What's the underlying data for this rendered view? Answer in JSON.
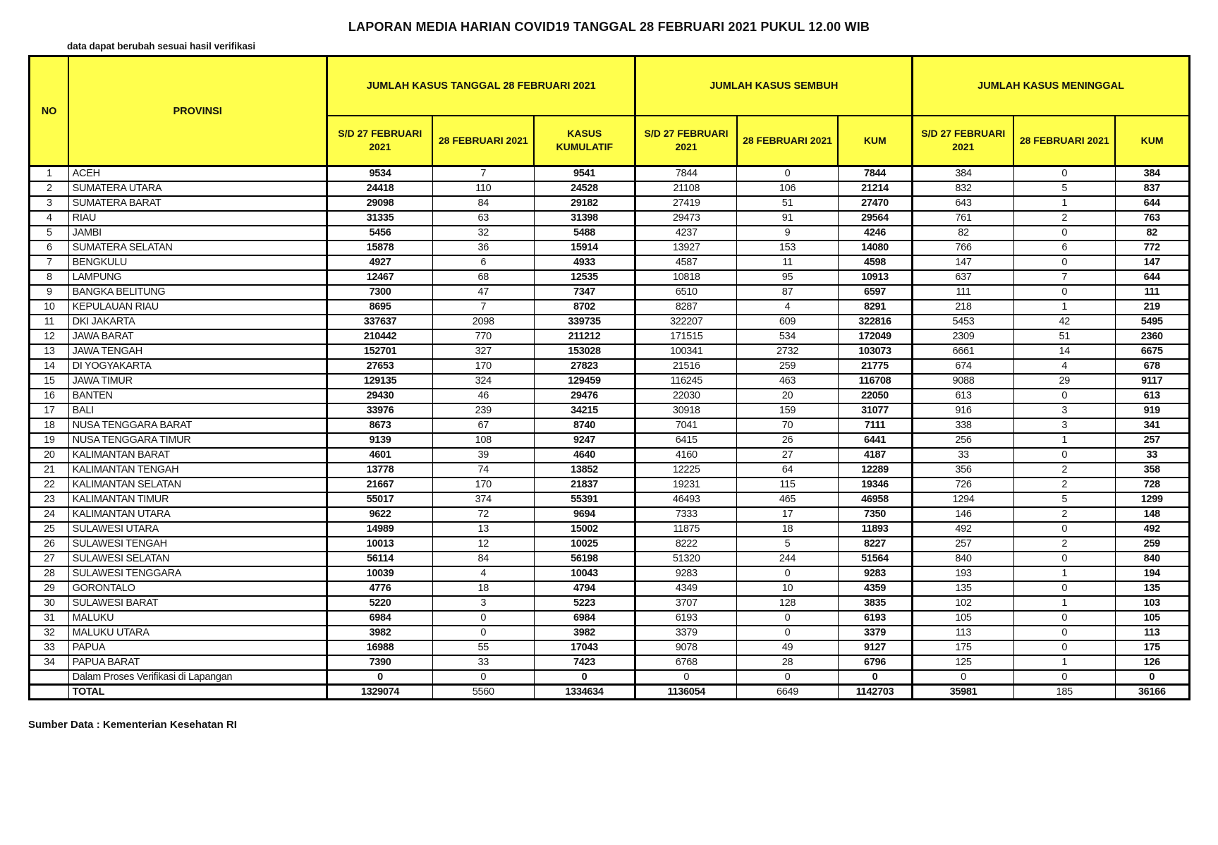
{
  "page": {
    "title": "LAPORAN MEDIA HARIAN COVID19 TANGGAL 28 FEBRUARI 2021 PUKUL 12.00 WIB",
    "note": "data dapat berubah sesuai hasil verifikasi",
    "source": "Sumber Data : Kementerian Kesehatan RI"
  },
  "colors": {
    "header_bg": "#ffff4d",
    "border": "#000000"
  },
  "table": {
    "groups": [
      "JUMLAH KASUS TANGGAL 28 FEBRUARI 2021",
      "JUMLAH KASUS SEMBUH",
      "JUMLAH KASUS MENINGGAL"
    ],
    "headers": {
      "no": "NO",
      "provinsi": "PROVINSI",
      "sd27": "S/D 27 FEBRUARI 2021",
      "feb28": "28 FEBRUARI 2021",
      "kasus_kumulatif": "KASUS KUMULATIF",
      "kum": "KUM"
    },
    "column_keys": [
      "sd27_kasus",
      "feb28_kasus",
      "kasus_kumulatif",
      "sd27_sembuh",
      "feb28_sembuh",
      "kum_sembuh",
      "sd27_meninggal",
      "feb28_meninggal",
      "kum_meninggal"
    ],
    "rows": [
      {
        "no": "1",
        "provinsi": "ACEH",
        "values": [
          9534,
          7,
          9541,
          7844,
          0,
          7844,
          384,
          0,
          384
        ]
      },
      {
        "no": "2",
        "provinsi": "SUMATERA UTARA",
        "values": [
          24418,
          110,
          24528,
          21108,
          106,
          21214,
          832,
          5,
          837
        ]
      },
      {
        "no": "3",
        "provinsi": "SUMATERA BARAT",
        "values": [
          29098,
          84,
          29182,
          27419,
          51,
          27470,
          643,
          1,
          644
        ]
      },
      {
        "no": "4",
        "provinsi": "RIAU",
        "values": [
          31335,
          63,
          31398,
          29473,
          91,
          29564,
          761,
          2,
          763
        ]
      },
      {
        "no": "5",
        "provinsi": "JAMBI",
        "values": [
          5456,
          32,
          5488,
          4237,
          9,
          4246,
          82,
          0,
          82
        ]
      },
      {
        "no": "6",
        "provinsi": "SUMATERA SELATAN",
        "values": [
          15878,
          36,
          15914,
          13927,
          153,
          14080,
          766,
          6,
          772
        ]
      },
      {
        "no": "7",
        "provinsi": "BENGKULU",
        "values": [
          4927,
          6,
          4933,
          4587,
          11,
          4598,
          147,
          0,
          147
        ]
      },
      {
        "no": "8",
        "provinsi": "LAMPUNG",
        "values": [
          12467,
          68,
          12535,
          10818,
          95,
          10913,
          637,
          7,
          644
        ]
      },
      {
        "no": "9",
        "provinsi": "BANGKA BELITUNG",
        "values": [
          7300,
          47,
          7347,
          6510,
          87,
          6597,
          111,
          0,
          111
        ]
      },
      {
        "no": "10",
        "provinsi": "KEPULAUAN RIAU",
        "values": [
          8695,
          7,
          8702,
          8287,
          4,
          8291,
          218,
          1,
          219
        ]
      },
      {
        "no": "11",
        "provinsi": "DKI JAKARTA",
        "values": [
          337637,
          2098,
          339735,
          322207,
          609,
          322816,
          5453,
          42,
          5495
        ]
      },
      {
        "no": "12",
        "provinsi": "JAWA BARAT",
        "values": [
          210442,
          770,
          211212,
          171515,
          534,
          172049,
          2309,
          51,
          2360
        ]
      },
      {
        "no": "13",
        "provinsi": "JAWA TENGAH",
        "values": [
          152701,
          327,
          153028,
          100341,
          2732,
          103073,
          6661,
          14,
          6675
        ]
      },
      {
        "no": "14",
        "provinsi": "DI YOGYAKARTA",
        "values": [
          27653,
          170,
          27823,
          21516,
          259,
          21775,
          674,
          4,
          678
        ]
      },
      {
        "no": "15",
        "provinsi": "JAWA TIMUR",
        "values": [
          129135,
          324,
          129459,
          116245,
          463,
          116708,
          9088,
          29,
          9117
        ]
      },
      {
        "no": "16",
        "provinsi": "BANTEN",
        "values": [
          29430,
          46,
          29476,
          22030,
          20,
          22050,
          613,
          0,
          613
        ]
      },
      {
        "no": "17",
        "provinsi": "BALI",
        "values": [
          33976,
          239,
          34215,
          30918,
          159,
          31077,
          916,
          3,
          919
        ]
      },
      {
        "no": "18",
        "provinsi": "NUSA TENGGARA BARAT",
        "values": [
          8673,
          67,
          8740,
          7041,
          70,
          7111,
          338,
          3,
          341
        ]
      },
      {
        "no": "19",
        "provinsi": "NUSA TENGGARA TIMUR",
        "values": [
          9139,
          108,
          9247,
          6415,
          26,
          6441,
          256,
          1,
          257
        ]
      },
      {
        "no": "20",
        "provinsi": "KALIMANTAN BARAT",
        "values": [
          4601,
          39,
          4640,
          4160,
          27,
          4187,
          33,
          0,
          33
        ]
      },
      {
        "no": "21",
        "provinsi": "KALIMANTAN TENGAH",
        "values": [
          13778,
          74,
          13852,
          12225,
          64,
          12289,
          356,
          2,
          358
        ]
      },
      {
        "no": "22",
        "provinsi": "KALIMANTAN SELATAN",
        "values": [
          21667,
          170,
          21837,
          19231,
          115,
          19346,
          726,
          2,
          728
        ]
      },
      {
        "no": "23",
        "provinsi": "KALIMANTAN TIMUR",
        "values": [
          55017,
          374,
          55391,
          46493,
          465,
          46958,
          1294,
          5,
          1299
        ]
      },
      {
        "no": "24",
        "provinsi": "KALIMANTAN UTARA",
        "values": [
          9622,
          72,
          9694,
          7333,
          17,
          7350,
          146,
          2,
          148
        ]
      },
      {
        "no": "25",
        "provinsi": "SULAWESI UTARA",
        "values": [
          14989,
          13,
          15002,
          11875,
          18,
          11893,
          492,
          0,
          492
        ]
      },
      {
        "no": "26",
        "provinsi": "SULAWESI TENGAH",
        "values": [
          10013,
          12,
          10025,
          8222,
          5,
          8227,
          257,
          2,
          259
        ]
      },
      {
        "no": "27",
        "provinsi": "SULAWESI SELATAN",
        "values": [
          56114,
          84,
          56198,
          51320,
          244,
          51564,
          840,
          0,
          840
        ]
      },
      {
        "no": "28",
        "provinsi": "SULAWESI TENGGARA",
        "values": [
          10039,
          4,
          10043,
          9283,
          0,
          9283,
          193,
          1,
          194
        ]
      },
      {
        "no": "29",
        "provinsi": "GORONTALO",
        "values": [
          4776,
          18,
          4794,
          4349,
          10,
          4359,
          135,
          0,
          135
        ]
      },
      {
        "no": "30",
        "provinsi": "SULAWESI BARAT",
        "values": [
          5220,
          3,
          5223,
          3707,
          128,
          3835,
          102,
          1,
          103
        ]
      },
      {
        "no": "31",
        "provinsi": "MALUKU",
        "values": [
          6984,
          0,
          6984,
          6193,
          0,
          6193,
          105,
          0,
          105
        ]
      },
      {
        "no": "32",
        "provinsi": "MALUKU UTARA",
        "values": [
          3982,
          0,
          3982,
          3379,
          0,
          3379,
          113,
          0,
          113
        ]
      },
      {
        "no": "33",
        "provinsi": "PAPUA",
        "values": [
          16988,
          55,
          17043,
          9078,
          49,
          9127,
          175,
          0,
          175
        ]
      },
      {
        "no": "34",
        "provinsi": "PAPUA BARAT",
        "values": [
          7390,
          33,
          7423,
          6768,
          28,
          6796,
          125,
          1,
          126
        ]
      },
      {
        "no": "",
        "provinsi": "Dalam Proses Verifikasi di Lapangan",
        "kind": "verification",
        "values": [
          0,
          0,
          0,
          0,
          0,
          0,
          0,
          0,
          0
        ]
      },
      {
        "no": "",
        "provinsi": "TOTAL",
        "kind": "total",
        "values": [
          1329074,
          5560,
          1334634,
          1136054,
          6649,
          1142703,
          35981,
          185,
          36166
        ]
      }
    ]
  }
}
